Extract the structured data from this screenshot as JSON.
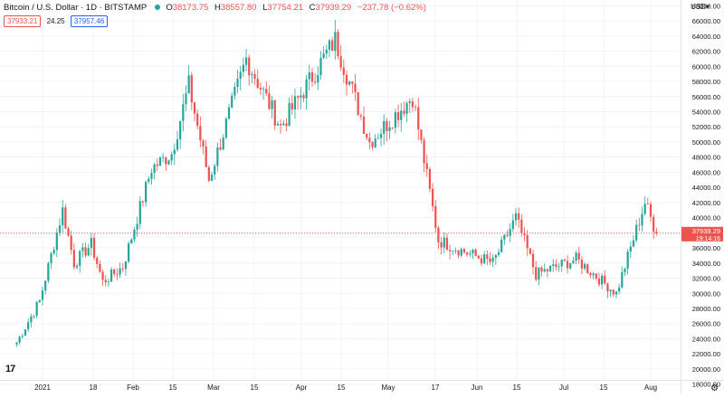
{
  "header": {
    "symbol": "Bitcoin / U.S. Dollar · 1D · BITSTAMP",
    "o_label": "O",
    "o_value": "38173.75",
    "h_label": "H",
    "h_value": "38557.80",
    "l_label": "L",
    "l_value": "37754.21",
    "c_label": "C",
    "c_value": "37939.29",
    "change": "−237.78 (−0.62%)"
  },
  "quotes": {
    "sell": "37933.21",
    "spread": "24.25",
    "buy": "37957.46"
  },
  "currency": "USD",
  "price_tag": {
    "price": "37939.29",
    "countdown": "19:14:16"
  },
  "colors": {
    "up": "#26a69a",
    "down": "#ef5350",
    "grid": "#f0f3fa",
    "last_line": "#ef5350"
  },
  "chart_data": {
    "type": "candlestick",
    "x_ticks": [
      "2021",
      "18",
      "Feb",
      "15",
      "Mar",
      "15",
      "Apr",
      "15",
      "May",
      "17",
      "Jun",
      "15",
      "Jul",
      "15",
      "Aug"
    ],
    "y_ticks": [
      "18000.00",
      "20000.00",
      "22000.00",
      "24000.00",
      "26000.00",
      "28000.00",
      "30000.00",
      "32000.00",
      "34000.00",
      "36000.00",
      "38000.00",
      "40000.00",
      "42000.00",
      "44000.00",
      "46000.00",
      "48000.00",
      "50000.00",
      "52000.00",
      "54000.00",
      "56000.00",
      "58000.00",
      "60000.00",
      "62000.00",
      "64000.00",
      "66000.00",
      "68000.00"
    ],
    "ylim": [
      17000,
      69000
    ],
    "grid": true,
    "last_price": 37939.29,
    "close_series": [
      {
        "date": "2020-12-23",
        "close": 23500
      },
      {
        "date": "2020-12-31",
        "close": 29000
      },
      {
        "date": "2021-01-08",
        "close": 41000
      },
      {
        "date": "2021-01-12",
        "close": 34000
      },
      {
        "date": "2021-01-18",
        "close": 36500
      },
      {
        "date": "2021-01-22",
        "close": 31500
      },
      {
        "date": "2021-01-29",
        "close": 33500
      },
      {
        "date": "2021-02-08",
        "close": 46500
      },
      {
        "date": "2021-02-15",
        "close": 48500
      },
      {
        "date": "2021-02-21",
        "close": 57500
      },
      {
        "date": "2021-02-28",
        "close": 45000
      },
      {
        "date": "2021-03-13",
        "close": 61000
      },
      {
        "date": "2021-03-25",
        "close": 52000
      },
      {
        "date": "2021-04-13",
        "close": 63500
      },
      {
        "date": "2021-04-25",
        "close": 50000
      },
      {
        "date": "2021-05-10",
        "close": 56000
      },
      {
        "date": "2021-05-19",
        "close": 37000
      },
      {
        "date": "2021-05-28",
        "close": 35500
      },
      {
        "date": "2021-06-07",
        "close": 34000
      },
      {
        "date": "2021-06-15",
        "close": 40000
      },
      {
        "date": "2021-06-22",
        "close": 32500
      },
      {
        "date": "2021-07-06",
        "close": 34500
      },
      {
        "date": "2021-07-20",
        "close": 30000
      },
      {
        "date": "2021-07-30",
        "close": 42000
      },
      {
        "date": "2021-08-03",
        "close": 37939
      }
    ]
  }
}
